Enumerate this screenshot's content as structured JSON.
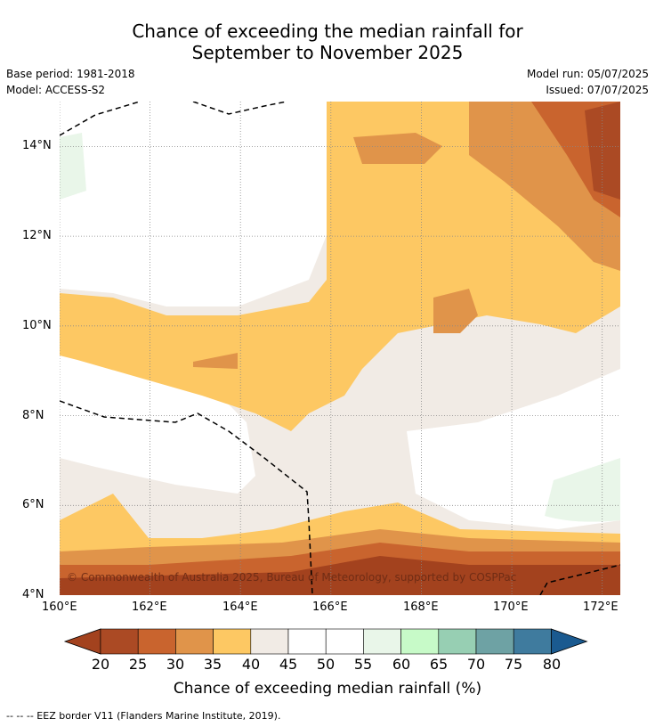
{
  "title": {
    "line1": "Chance of exceeding the median rainfall for",
    "line2": "September to November 2025"
  },
  "meta": {
    "base_period": "Base period: 1981-2018",
    "model": "Model: ACCESS-S2",
    "model_run": "Model run: 05/07/2025",
    "issued": "Issued: 07/07/2025"
  },
  "map": {
    "lon_range": [
      160.0,
      172.4
    ],
    "lat_range": [
      4.0,
      15.0
    ],
    "x_ticks": [
      "160°E",
      "162°E",
      "164°E",
      "166°E",
      "168°E",
      "170°E",
      "172°E"
    ],
    "y_ticks": [
      "14°N",
      "12°N",
      "10°N",
      "8°N",
      "6°N",
      "4°N"
    ],
    "copyright": "© Commonwealth of Australia 2025, Bureau of Meteorology, supported by COSPPac"
  },
  "colorbar": {
    "labels": [
      "20",
      "25",
      "30",
      "35",
      "40",
      "45",
      "50",
      "55",
      "60",
      "65",
      "70",
      "75",
      "80"
    ],
    "colors": [
      "#a3421e",
      "#ab4a24",
      "#c9642e",
      "#e0944a",
      "#fdc863",
      "#f1ebe5",
      "#ffffff",
      "#ffffff",
      "#e9f6e9",
      "#c7fac8",
      "#97cfb3",
      "#6ea2a4",
      "#3f7b9e",
      "#1a5a90"
    ],
    "title": "Chance of exceeding median rainfall (%)"
  },
  "footnote": "--  --  -- EEZ border V11 (Flanders Marine Institute, 2019)."
}
